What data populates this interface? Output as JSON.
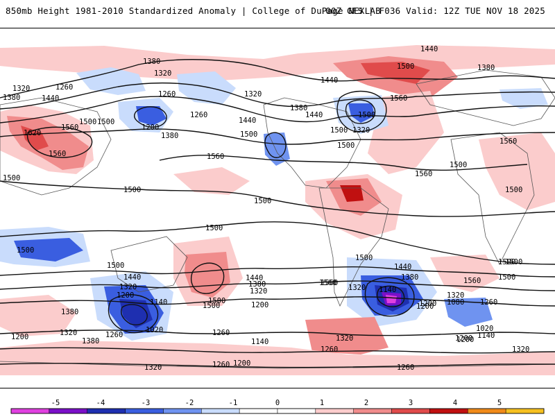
{
  "header": {
    "title": "850mb Height 1981-2010 Standardized Anomaly | College of DuPage NEXLAB",
    "run_info": "00Z GFS | F036 Valid: 12Z TUE NOV 18 2025"
  },
  "map": {
    "variable": "850mb geopotential height (dam contours) with standardized anomaly shading",
    "contour_labels": [
      {
        "id": "c1",
        "text": "1380"
      },
      {
        "id": "c2",
        "text": "1320"
      },
      {
        "id": "c3",
        "text": "1320"
      },
      {
        "id": "c4",
        "text": "1260"
      },
      {
        "id": "c5",
        "text": "1380"
      },
      {
        "id": "c6",
        "text": "1440"
      },
      {
        "id": "c7",
        "text": "1500"
      },
      {
        "id": "c8",
        "text": "1620"
      },
      {
        "id": "c9",
        "text": "1560"
      },
      {
        "id": "c10",
        "text": "1560"
      },
      {
        "id": "c11",
        "text": "1260"
      },
      {
        "id": "c12",
        "text": "1200"
      },
      {
        "id": "c13",
        "text": "1260"
      },
      {
        "id": "c14",
        "text": "1380"
      },
      {
        "id": "c15",
        "text": "1320"
      },
      {
        "id": "c16",
        "text": "1440"
      },
      {
        "id": "c17",
        "text": "1500"
      },
      {
        "id": "c18",
        "text": "1560"
      },
      {
        "id": "c19",
        "text": "1380"
      },
      {
        "id": "c20",
        "text": "1440"
      },
      {
        "id": "c21",
        "text": "1440"
      },
      {
        "id": "c22",
        "text": "1500"
      },
      {
        "id": "c23",
        "text": "1560"
      },
      {
        "id": "c24",
        "text": "1320"
      },
      {
        "id": "c25",
        "text": "1500"
      },
      {
        "id": "c26",
        "text": "1560"
      },
      {
        "id": "c27",
        "text": "1440"
      },
      {
        "id": "c28",
        "text": "1380"
      },
      {
        "id": "c29",
        "text": "1500"
      },
      {
        "id": "c30",
        "text": "1500"
      },
      {
        "id": "c31",
        "text": "1500"
      },
      {
        "id": "c32",
        "text": "1500"
      },
      {
        "id": "c33",
        "text": "1500"
      },
      {
        "id": "c34",
        "text": "1500"
      },
      {
        "id": "c35",
        "text": "1500"
      },
      {
        "id": "c36",
        "text": "1500"
      },
      {
        "id": "c37",
        "text": "1440"
      },
      {
        "id": "c38",
        "text": "1380"
      },
      {
        "id": "c39",
        "text": "1320"
      },
      {
        "id": "c40",
        "text": "1200"
      },
      {
        "id": "c41",
        "text": "1140"
      },
      {
        "id": "c42",
        "text": "1020"
      },
      {
        "id": "c43",
        "text": "1260"
      },
      {
        "id": "c44",
        "text": "1380"
      },
      {
        "id": "c45",
        "text": "1320"
      },
      {
        "id": "c46",
        "text": "1200"
      },
      {
        "id": "c47",
        "text": "1440"
      },
      {
        "id": "c48",
        "text": "1380"
      },
      {
        "id": "c49",
        "text": "1320"
      },
      {
        "id": "c50",
        "text": "1500"
      },
      {
        "id": "c51",
        "text": "1200"
      },
      {
        "id": "c52",
        "text": "1140"
      },
      {
        "id": "c53",
        "text": "1260"
      },
      {
        "id": "c54",
        "text": "1200"
      },
      {
        "id": "c55",
        "text": "1320"
      },
      {
        "id": "c56",
        "text": "1260"
      },
      {
        "id": "c57",
        "text": "1560"
      },
      {
        "id": "c58",
        "text": "1440"
      },
      {
        "id": "c59",
        "text": "1380"
      },
      {
        "id": "c60",
        "text": "1320"
      },
      {
        "id": "c61",
        "text": "1140"
      },
      {
        "id": "c62",
        "text": "1200"
      },
      {
        "id": "c63",
        "text": "1080"
      },
      {
        "id": "c64",
        "text": "1260"
      },
      {
        "id": "c65",
        "text": "1320"
      },
      {
        "id": "c66",
        "text": "1020"
      },
      {
        "id": "c67",
        "text": "1140"
      },
      {
        "id": "c68",
        "text": "1200"
      },
      {
        "id": "c69",
        "text": "1260"
      },
      {
        "id": "c70",
        "text": "1560"
      },
      {
        "id": "c71",
        "text": "1500"
      },
      {
        "id": "c72",
        "text": "1320"
      },
      {
        "id": "c73",
        "text": "1500"
      },
      {
        "id": "c74",
        "text": "1260"
      },
      {
        "id": "c75",
        "text": "1320"
      },
      {
        "id": "c76",
        "text": "1200"
      },
      {
        "id": "c77",
        "text": "1200"
      },
      {
        "id": "c78",
        "text": "1500"
      },
      {
        "id": "c79",
        "text": "1560"
      },
      {
        "id": "c80",
        "text": "1500"
      },
      {
        "id": "c81",
        "text": "1560"
      },
      {
        "id": "c82",
        "text": "1500"
      },
      {
        "id": "c83",
        "text": "1500"
      },
      {
        "id": "c84",
        "text": "1500"
      },
      {
        "id": "c85",
        "text": "1500"
      }
    ]
  },
  "legend": {
    "tick_labels": [
      "-5",
      "-4",
      "-3",
      "-2",
      "-1",
      "0",
      "1",
      "2",
      "3",
      "4",
      "5"
    ],
    "bins": [
      {
        "color": "#e040e0"
      },
      {
        "color": "#7a10c8"
      },
      {
        "color": "#1e2fb0"
      },
      {
        "color": "#3a5ee0"
      },
      {
        "color": "#6f93f0"
      },
      {
        "color": "#c9dcfc"
      },
      {
        "color": "#ffffff"
      },
      {
        "color": "#ffffff"
      },
      {
        "color": "#fbcccc"
      },
      {
        "color": "#f08c8c"
      },
      {
        "color": "#e04b4b"
      },
      {
        "color": "#c01010"
      },
      {
        "color": "#f08a1a"
      },
      {
        "color": "#f6c020"
      }
    ]
  }
}
